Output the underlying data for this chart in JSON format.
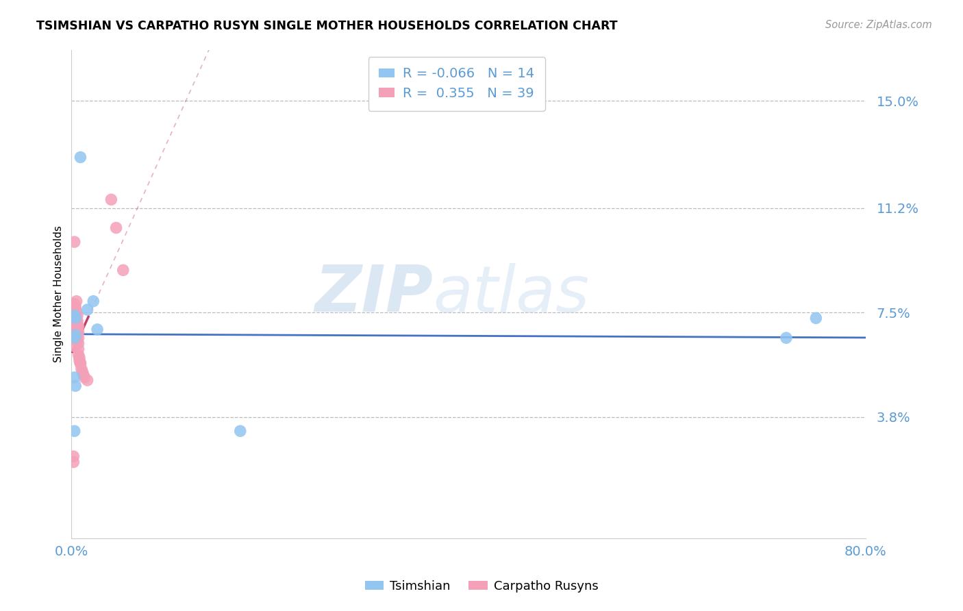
{
  "title": "TSIMSHIAN VS CARPATHO RUSYN SINGLE MOTHER HOUSEHOLDS CORRELATION CHART",
  "source": "Source: ZipAtlas.com",
  "ylabel": "Single Mother Households",
  "xlim": [
    0.0,
    0.8
  ],
  "ylim": [
    -0.005,
    0.168
  ],
  "yticks": [
    0.038,
    0.075,
    0.112,
    0.15
  ],
  "ytick_labels": [
    "3.8%",
    "7.5%",
    "11.2%",
    "15.0%"
  ],
  "xtick_positions": [
    0.0,
    0.1,
    0.2,
    0.3,
    0.4,
    0.5,
    0.6,
    0.7,
    0.8
  ],
  "xtick_labels": [
    "0.0%",
    "",
    "",
    "",
    "",
    "",
    "",
    "",
    "80.0%"
  ],
  "legend_blue_R": "-0.066",
  "legend_blue_N": "14",
  "legend_pink_R": "0.355",
  "legend_pink_N": "39",
  "blue_color": "#92C5F0",
  "pink_color": "#F4A0B8",
  "trend_blue_color": "#4472C4",
  "trend_pink_color": "#C0406A",
  "axis_color": "#5B9BD5",
  "grid_color": "#BBBBBB",
  "background_color": "#FFFFFF",
  "tsimshian_x": [
    0.009,
    0.016,
    0.022,
    0.026,
    0.003,
    0.004,
    0.004,
    0.003,
    0.003,
    0.004,
    0.003,
    0.75,
    0.72,
    0.17
  ],
  "tsimshian_y": [
    0.13,
    0.076,
    0.079,
    0.069,
    0.074,
    0.073,
    0.067,
    0.066,
    0.052,
    0.049,
    0.033,
    0.073,
    0.066,
    0.033
  ],
  "carpatho_x": [
    0.002,
    0.002,
    0.003,
    0.003,
    0.003,
    0.003,
    0.004,
    0.004,
    0.004,
    0.004,
    0.005,
    0.005,
    0.005,
    0.005,
    0.005,
    0.005,
    0.006,
    0.006,
    0.006,
    0.006,
    0.006,
    0.007,
    0.007,
    0.007,
    0.007,
    0.007,
    0.007,
    0.008,
    0.008,
    0.009,
    0.009,
    0.01,
    0.011,
    0.012,
    0.013,
    0.016,
    0.04,
    0.045,
    0.052
  ],
  "carpatho_y": [
    0.024,
    0.022,
    0.1,
    0.078,
    0.075,
    0.063,
    0.077,
    0.076,
    0.073,
    0.07,
    0.079,
    0.075,
    0.072,
    0.071,
    0.069,
    0.066,
    0.074,
    0.072,
    0.07,
    0.068,
    0.065,
    0.07,
    0.068,
    0.066,
    0.064,
    0.062,
    0.06,
    0.059,
    0.058,
    0.057,
    0.057,
    0.055,
    0.054,
    0.053,
    0.052,
    0.051,
    0.115,
    0.105,
    0.09
  ],
  "pink_trend_x_solid_start": 0.001,
  "pink_trend_x_solid_end": 0.017,
  "pink_trend_x_dash_end": 0.26,
  "blue_trend_x_start": 0.0,
  "blue_trend_x_end": 0.8
}
